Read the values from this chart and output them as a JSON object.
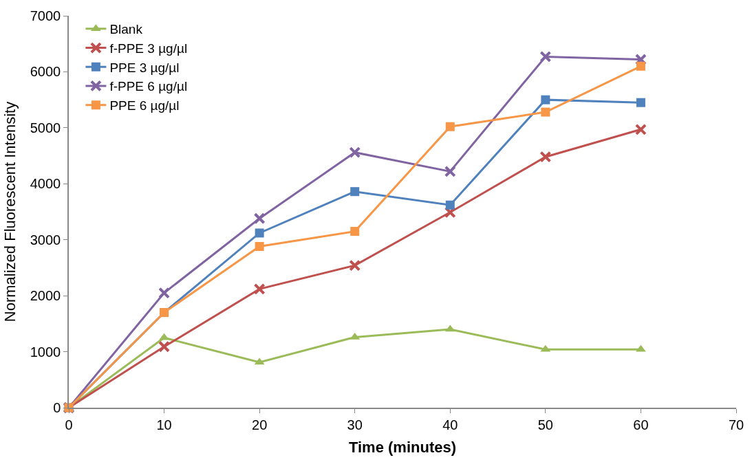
{
  "chart_data": {
    "type": "line",
    "xlabel": "Time (minutes)",
    "ylabel": "Normalized Fluorescent Intensity",
    "x": [
      0,
      10,
      20,
      30,
      40,
      50,
      60
    ],
    "xlim": [
      0,
      70
    ],
    "xticks": [
      0,
      10,
      20,
      30,
      40,
      50,
      60,
      70
    ],
    "ylim": [
      0,
      7000
    ],
    "yticks": [
      0,
      1000,
      2000,
      3000,
      4000,
      5000,
      6000,
      7000
    ],
    "grid": false,
    "legend": "top left",
    "series": [
      {
        "name": "Blank",
        "color": "#9bbb59",
        "marker": "triangle",
        "values": [
          0,
          1250,
          810,
          1260,
          1400,
          1040,
          1040
        ]
      },
      {
        "name": "f-PPE 3 µg/µl",
        "color": "#c0504d",
        "marker": "cross",
        "values": [
          0,
          1090,
          2120,
          2540,
          3490,
          4480,
          4970
        ]
      },
      {
        "name": "PPE 3 µg/µl",
        "color": "#4f81bd",
        "marker": "square",
        "values": [
          0,
          1700,
          3120,
          3860,
          3620,
          5500,
          5450
        ]
      },
      {
        "name": "f-PPE 6 µg/µl",
        "color": "#8064a2",
        "marker": "cross",
        "values": [
          0,
          2050,
          3380,
          4560,
          4220,
          6270,
          6220
        ]
      },
      {
        "name": "PPE 6 µg/µl",
        "color": "#f79646",
        "marker": "square",
        "values": [
          0,
          1700,
          2880,
          3150,
          5020,
          5280,
          6100
        ]
      }
    ]
  }
}
